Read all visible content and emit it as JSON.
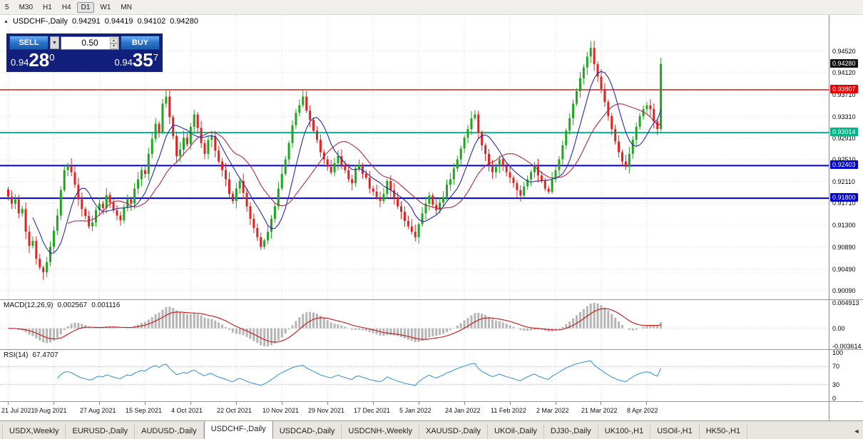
{
  "toolbar": {
    "timeframes": [
      "5",
      "M30",
      "H1",
      "H4",
      "D1",
      "W1",
      "MN"
    ],
    "active": "D1"
  },
  "chart_header": {
    "icon": "▲",
    "title": "USDCHF-,Daily"
  },
  "trade_panel": {
    "sell_label": "SELL",
    "buy_label": "BUY",
    "lot_value": "0.50",
    "dropdown_icon": "▼",
    "spin_up_icon": "▲",
    "spin_down_icon": "▼",
    "sell_price_main": "0.94",
    "sell_price_big": "28",
    "sell_price_sup": "0",
    "buy_price_main": "0.94",
    "buy_price_big": "35",
    "buy_price_sup": "7"
  },
  "indicator_labels": {
    "macd": {
      "name": "MACD(12,26,9)",
      "value_main": "0.002567",
      "value_signal": "0.001116"
    },
    "rsi": {
      "name": "RSI(14)",
      "value": "67.4707"
    }
  },
  "tabbar": {
    "scroll_left_icon": "◄",
    "tabs": [
      {
        "label": "USDX,Weekly"
      },
      {
        "label": "EURUSD-,Daily"
      },
      {
        "label": "AUDUSD-,Daily"
      },
      {
        "label": "USDCHF-,Daily",
        "active": true
      },
      {
        "label": "USDCAD-,Daily"
      },
      {
        "label": "USDCNH-,Weekly"
      },
      {
        "label": "XAUUSD-,Daily"
      },
      {
        "label": "UKOil-,Daily"
      },
      {
        "label": "DJ30-,Daily"
      },
      {
        "label": "UK100-,H1"
      },
      {
        "label": "USOil-,H1"
      },
      {
        "label": "HK50-,H1"
      }
    ]
  },
  "chart_data": {
    "type": "candlestick",
    "symbol": "USDCHF-",
    "timeframe": "Daily",
    "current_ohlc": {
      "open": "0.94291",
      "high": "0.94419",
      "low": "0.94102",
      "close": "0.94280"
    },
    "y_axis": {
      "price_min": 0.8993,
      "price_max": 0.9519,
      "ticks": [
        "0.94520",
        "0.94120",
        "0.93710",
        "0.93310",
        "0.92910",
        "0.92510",
        "0.92110",
        "0.91710",
        "0.91300",
        "0.90890",
        "0.90490",
        "0.90090"
      ],
      "badges": [
        {
          "text": "0.94280",
          "price": 0.9428,
          "bg": "#111111",
          "fg": "#ffffff",
          "name": "current-price-badge"
        },
        {
          "text": "0.93807",
          "price": 0.93807,
          "bg": "#e60000",
          "fg": "#ffffff",
          "name": "hline-red-price-badge"
        },
        {
          "text": "0.93014",
          "price": 0.93014,
          "bg": "#00b586",
          "fg": "#ffffff",
          "name": "hline-teal-price-badge"
        },
        {
          "text": "0.92403",
          "price": 0.92403,
          "bg": "#0000cd",
          "fg": "#ffffff",
          "name": "hline-blue1-price-badge"
        },
        {
          "text": "0.91800",
          "price": 0.918,
          "bg": "#0000cd",
          "fg": "#ffffff",
          "name": "hline-blue2-price-badge"
        }
      ]
    },
    "x_axis": {
      "labels": [
        "21 Jul 2021",
        "9 Aug 2021",
        "27 Aug 2021",
        "15 Sep 2021",
        "4 Oct 2021",
        "22 Oct 2021",
        "10 Nov 2021",
        "29 Nov 2021",
        "17 Dec 2021",
        "5 Jan 2022",
        "24 Jan 2022",
        "11 Feb 2022",
        "2 Mar 2022",
        "21 Mar 2022",
        "8 Apr 2022"
      ],
      "candle_indices": [
        0,
        13,
        26,
        39,
        52,
        65,
        78,
        91,
        104,
        117,
        130,
        143,
        156,
        169,
        182
      ]
    },
    "closes": [
      0.9183,
      0.917,
      0.9178,
      0.9152,
      0.916,
      0.9118,
      0.9092,
      0.9101,
      0.9068,
      0.9052,
      0.9043,
      0.9062,
      0.909,
      0.912,
      0.9148,
      0.9195,
      0.9232,
      0.924,
      0.9228,
      0.9205,
      0.9178,
      0.916,
      0.9147,
      0.9128,
      0.9135,
      0.9158,
      0.917,
      0.9162,
      0.9186,
      0.9172,
      0.9158,
      0.9148,
      0.9139,
      0.9162,
      0.9178,
      0.917,
      0.9198,
      0.9215,
      0.9232,
      0.9225,
      0.9262,
      0.929,
      0.9318,
      0.9302,
      0.9355,
      0.9368,
      0.933,
      0.9295,
      0.9258,
      0.927,
      0.9292,
      0.928,
      0.9312,
      0.9335,
      0.931,
      0.9282,
      0.9262,
      0.9288,
      0.9295,
      0.9268,
      0.9248,
      0.9232,
      0.9215,
      0.9188,
      0.9175,
      0.9198,
      0.9212,
      0.919,
      0.9165,
      0.9142,
      0.9125,
      0.9108,
      0.909,
      0.9102,
      0.9118,
      0.9142,
      0.9165,
      0.9198,
      0.9225,
      0.9252,
      0.9282,
      0.9315,
      0.9338,
      0.9352,
      0.9368,
      0.9342,
      0.9325,
      0.9305,
      0.9288,
      0.9265,
      0.9252,
      0.9238,
      0.9228,
      0.9245,
      0.9258,
      0.9242,
      0.9232,
      0.9215,
      0.9208,
      0.9235,
      0.9242,
      0.9225,
      0.9218,
      0.9198,
      0.9192,
      0.9182,
      0.9175,
      0.9188,
      0.9212,
      0.9195,
      0.9182,
      0.9165,
      0.9155,
      0.9138,
      0.9128,
      0.9118,
      0.9108,
      0.9132,
      0.9152,
      0.917,
      0.9185,
      0.9168,
      0.9158,
      0.9172,
      0.9182,
      0.9205,
      0.9215,
      0.9235,
      0.9252,
      0.9272,
      0.9292,
      0.9308,
      0.9328,
      0.9335,
      0.9302,
      0.9278,
      0.9262,
      0.9242,
      0.9228,
      0.9238,
      0.9252,
      0.924,
      0.9228,
      0.9218,
      0.9208,
      0.9195,
      0.9185,
      0.9202,
      0.9215,
      0.9228,
      0.924,
      0.9222,
      0.9212,
      0.9198,
      0.9192,
      0.9215,
      0.9232,
      0.9252,
      0.9278,
      0.9305,
      0.9328,
      0.9355,
      0.9378,
      0.9402,
      0.9422,
      0.9442,
      0.9458,
      0.9428,
      0.9405,
      0.9382,
      0.9358,
      0.9332,
      0.9308,
      0.9285,
      0.9265,
      0.9248,
      0.9238,
      0.9262,
      0.9288,
      0.9312,
      0.9332,
      0.9345,
      0.9352,
      0.9345,
      0.9322,
      0.9308,
      0.9428
    ],
    "hlines": [
      {
        "price": 0.93807,
        "color": "#e60000",
        "width": 1.4,
        "name": "resistance-line"
      },
      {
        "price": 0.93014,
        "color": "#00c18f",
        "width": 2,
        "name": "teal-level-line"
      },
      {
        "price": 0.92403,
        "color": "#0000cd",
        "width": 2,
        "name": "support-line-1"
      },
      {
        "price": 0.918,
        "color": "#0000cd",
        "width": 2,
        "name": "support-line-2"
      }
    ],
    "overlays": [
      {
        "name": "ma-fast",
        "type": "sma",
        "period": 8,
        "color": "#2828b0"
      },
      {
        "name": "ma-slow",
        "type": "sma",
        "period": 18,
        "color": "#b22746"
      }
    ],
    "macd": {
      "fast": 12,
      "slow": 26,
      "signal_period": 9,
      "axis_labels": [
        "0.004913",
        "0.00",
        "-0.003614"
      ],
      "hist_color": "#b5b5b5",
      "signal_color": "#cc1111"
    },
    "rsi": {
      "period": 14,
      "levels": [
        70,
        30
      ],
      "axis_labels": [
        "100",
        "70",
        "30",
        "0"
      ],
      "color": "#3f97d4",
      "level_color": "#b9bedd"
    },
    "style": {
      "up_color": "#1fa51f",
      "down_color": "#e02222",
      "grid_color": "#d6d6d6",
      "wick_amp": 0.0014,
      "bg": "#ffffff"
    }
  }
}
